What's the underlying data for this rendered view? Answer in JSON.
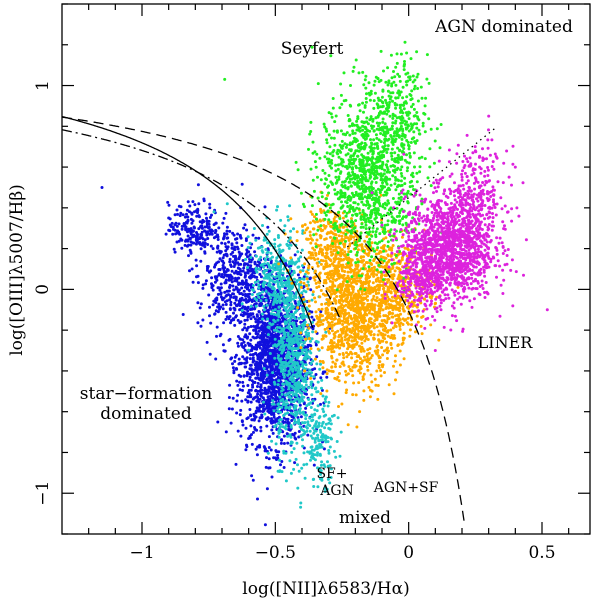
{
  "chart_data": {
    "type": "scatter",
    "title": "",
    "xlabel": "log([NII]λ6583/Hα)",
    "ylabel": "log([OIII]λ5007/Hβ)",
    "xlim": [
      -1.3,
      0.68
    ],
    "ylim": [
      -1.2,
      1.4
    ],
    "x_ticks": [
      -1,
      -0.5,
      0,
      0.5
    ],
    "x_tick_labels": [
      "−1",
      "−0.5",
      "0",
      "0.5"
    ],
    "y_ticks": [
      -1,
      0,
      1
    ],
    "y_tick_labels": [
      "−1",
      "0",
      "1"
    ],
    "grid": false,
    "legend": "none",
    "region_labels": {
      "seyfert": "Seyfert",
      "agn_dominated": "AGN dominated",
      "liner": "LINER",
      "sf_line1": "star−formation",
      "sf_line2": "dominated",
      "sfagn_line1": "SF+",
      "sfagn_line2": "AGN",
      "agnsf": "AGN+SF",
      "mixed": "mixed"
    },
    "series": [
      {
        "color": "#1010dd",
        "clusters": [
          {
            "cx": -0.5,
            "cy": -0.35,
            "sx": 0.065,
            "sy": 0.2,
            "n": 1800
          },
          {
            "cx": -0.65,
            "cy": 0.05,
            "sx": 0.07,
            "sy": 0.13,
            "n": 500
          },
          {
            "cx": -0.8,
            "cy": 0.3,
            "sx": 0.05,
            "sy": 0.06,
            "n": 200
          }
        ],
        "points": [
          [
            -1.15,
            0.5
          ],
          [
            -0.9,
            0.35
          ],
          [
            -0.63,
            0.4
          ]
        ]
      },
      {
        "color": "#20c8c8",
        "clusters": [
          {
            "cx": -0.43,
            "cy": -0.35,
            "sx": 0.04,
            "sy": 0.23,
            "n": 700
          },
          {
            "cx": -0.5,
            "cy": 0.05,
            "sx": 0.045,
            "sy": 0.13,
            "n": 300
          },
          {
            "cx": -0.33,
            "cy": -0.75,
            "sx": 0.03,
            "sy": 0.1,
            "n": 150
          }
        ],
        "points": [
          [
            -0.73,
            0.38
          ],
          [
            -0.68,
            0.42
          ]
        ]
      },
      {
        "color": "#ffaa00",
        "clusters": [
          {
            "cx": -0.2,
            "cy": -0.1,
            "sx": 0.08,
            "sy": 0.17,
            "n": 1200
          },
          {
            "cx": -0.03,
            "cy": 0.0,
            "sx": 0.06,
            "sy": 0.12,
            "n": 400
          },
          {
            "cx": -0.3,
            "cy": 0.22,
            "sx": 0.06,
            "sy": 0.1,
            "n": 300
          }
        ],
        "points": []
      },
      {
        "color": "#22ee22",
        "clusters": [
          {
            "cx": -0.15,
            "cy": 0.55,
            "sx": 0.09,
            "sy": 0.2,
            "n": 1100
          },
          {
            "cx": -0.05,
            "cy": 0.85,
            "sx": 0.06,
            "sy": 0.15,
            "n": 250
          }
        ],
        "points": [
          [
            -0.69,
            1.03
          ]
        ]
      },
      {
        "color": "#dd22dd",
        "clusters": [
          {
            "cx": 0.15,
            "cy": 0.2,
            "sx": 0.085,
            "sy": 0.13,
            "n": 1300
          },
          {
            "cx": 0.25,
            "cy": 0.45,
            "sx": 0.06,
            "sy": 0.12,
            "n": 300
          },
          {
            "cx": 0.05,
            "cy": 0.05,
            "sx": 0.05,
            "sy": 0.08,
            "n": 200
          }
        ],
        "points": [
          [
            0.52,
            -0.1
          ],
          [
            0.1,
            -0.3
          ],
          [
            0.3,
            0.85
          ],
          [
            0.4,
            0.6
          ]
        ]
      }
    ],
    "curves": [
      {
        "name": "",
        "style": "solid",
        "formula": "0.61/(x-0.05)+1.3",
        "x_range": [
          -1.3,
          -0.36
        ]
      },
      {
        "name": "",
        "style": "dash-dot",
        "formula": "0.61/(x-0.2)+1.19",
        "x_range": [
          -1.3,
          -0.26
        ]
      },
      {
        "name": "",
        "style": "dashed",
        "formula": "0.61/(x-0.47)+1.19",
        "x_range": [
          -1.3,
          0.21
        ]
      },
      {
        "name": "",
        "style": "dotted",
        "formula": "1.05*x+0.45",
        "x_range": [
          -0.23,
          0.33
        ]
      }
    ]
  }
}
